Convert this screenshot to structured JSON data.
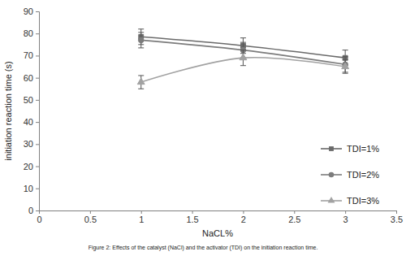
{
  "chart_data": {
    "type": "line",
    "x_label": "NaCL%",
    "y_label": "initiation reaction time (s)",
    "caption": "Figure 2: Effects of the catalyst (NaCl) and the activator (TDI) on the initiation reaction time.",
    "x": [
      1,
      2,
      3
    ],
    "series": [
      {
        "name": "TDI=1%",
        "color": "#6a6a6a",
        "marker": "square",
        "values": [
          78.5,
          74.5,
          69
        ],
        "errors": [
          3.5,
          3.5,
          3.5
        ]
      },
      {
        "name": "TDI=2%",
        "color": "#7c7c7c",
        "marker": "circle",
        "values": [
          77,
          72.5,
          66
        ],
        "errors": [
          3.5,
          3.5,
          3.5
        ]
      },
      {
        "name": "TDI=3%",
        "color": "#a2a2a2",
        "marker": "triangle",
        "values": [
          58,
          69,
          65
        ],
        "errors": [
          3,
          3.5,
          3
        ]
      }
    ],
    "xlim": [
      0,
      3.5
    ],
    "xticks": [
      0,
      0.5,
      1,
      1.5,
      2,
      2.5,
      3,
      3.5
    ],
    "ylim": [
      0,
      90
    ],
    "yticks": [
      0,
      10,
      20,
      30,
      40,
      50,
      60,
      70,
      80,
      90
    ],
    "grid": false,
    "legend": "right"
  }
}
